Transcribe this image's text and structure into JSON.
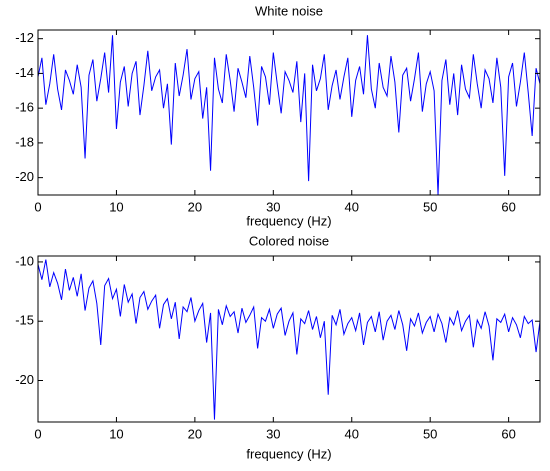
{
  "chart_data": [
    {
      "type": "line",
      "title": "White noise",
      "xlabel": "frequency (Hz)",
      "x": [
        0,
        0.5,
        1,
        1.5,
        2,
        2.5,
        3,
        3.5,
        4,
        4.5,
        5,
        5.5,
        6,
        6.5,
        7,
        7.5,
        8,
        8.5,
        9,
        9.5,
        10,
        10.5,
        11,
        11.5,
        12,
        12.5,
        13,
        13.5,
        14,
        14.5,
        15,
        15.5,
        16,
        16.5,
        17,
        17.5,
        18,
        18.5,
        19,
        19.5,
        20,
        20.5,
        21,
        21.5,
        22,
        22.5,
        23,
        23.5,
        24,
        24.5,
        25,
        25.5,
        26,
        26.5,
        27,
        27.5,
        28,
        28.5,
        29,
        29.5,
        30,
        30.5,
        31,
        31.5,
        32,
        32.5,
        33,
        33.5,
        34,
        34.5,
        35,
        35.5,
        36,
        36.5,
        37,
        37.5,
        38,
        38.5,
        39,
        39.5,
        40,
        40.5,
        41,
        41.5,
        42,
        42.5,
        43,
        43.5,
        44,
        44.5,
        45,
        45.5,
        46,
        46.5,
        47,
        47.5,
        48,
        48.5,
        49,
        49.5,
        50,
        50.5,
        51,
        51.5,
        52,
        52.5,
        53,
        53.5,
        54,
        54.5,
        55,
        55.5,
        56,
        56.5,
        57,
        57.5,
        58,
        58.5,
        59,
        59.5,
        60,
        60.5,
        61,
        61.5,
        62,
        62.5,
        63,
        63.5,
        64
      ],
      "series": [
        {
          "color": "#0000ff",
          "values": [
            -14.2,
            -13.1,
            -15.8,
            -14.6,
            -12.9,
            -14.9,
            -16.1,
            -13.8,
            -14.4,
            -15.2,
            -13.5,
            -14.8,
            -18.9,
            -14.1,
            -13.2,
            -15.6,
            -14.3,
            -12.8,
            -15.1,
            -11.8,
            -17.2,
            -14.5,
            -13.6,
            -15.9,
            -14.0,
            -13.3,
            -16.4,
            -14.7,
            -12.7,
            -15.0,
            -14.2,
            -13.8,
            -16.0,
            -14.6,
            -18.1,
            -13.4,
            -15.3,
            -14.1,
            -12.6,
            -15.5,
            -14.3,
            -13.9,
            -16.6,
            -14.8,
            -19.6,
            -13.1,
            -14.9,
            -15.7,
            -12.9,
            -14.4,
            -16.2,
            -13.7,
            -14.5,
            -15.4,
            -13.0,
            -14.8,
            -17.0,
            -13.6,
            -14.2,
            -15.8,
            -12.8,
            -14.6,
            -16.3,
            -13.9,
            -14.4,
            -15.1,
            -13.3,
            -16.8,
            -14.0,
            -20.2,
            -13.5,
            -15.0,
            -14.3,
            -12.9,
            -16.1,
            -14.7,
            -13.8,
            -15.5,
            -14.2,
            -13.1,
            -16.5,
            -14.4,
            -13.6,
            -15.2,
            -11.8,
            -14.9,
            -16.0,
            -13.4,
            -14.8,
            -15.3,
            -13.0,
            -14.5,
            -17.4,
            -14.1,
            -13.7,
            -15.6,
            -14.3,
            -12.8,
            -16.2,
            -14.6,
            -13.9,
            -15.0,
            -21.0,
            -14.4,
            -13.2,
            -15.8,
            -14.0,
            -16.4,
            -13.5,
            -14.9,
            -15.4,
            -12.9,
            -14.6,
            -16.0,
            -13.8,
            -14.3,
            -15.7,
            -13.1,
            -14.8,
            -19.9,
            -14.2,
            -13.4,
            -15.9,
            -14.5,
            -12.8,
            -15.1,
            -17.6,
            -13.7,
            -14.6
          ]
        }
      ],
      "xlim": [
        0,
        64
      ],
      "xticks": [
        0,
        10,
        20,
        30,
        40,
        50,
        60
      ],
      "ylim": [
        -21,
        -11.5
      ],
      "yticks": [
        -20,
        -18,
        -16,
        -14,
        -12
      ]
    },
    {
      "type": "line",
      "title": "Colored noise",
      "xlabel": "frequency (Hz)",
      "x": [
        0,
        0.5,
        1,
        1.5,
        2,
        2.5,
        3,
        3.5,
        4,
        4.5,
        5,
        5.5,
        6,
        6.5,
        7,
        7.5,
        8,
        8.5,
        9,
        9.5,
        10,
        10.5,
        11,
        11.5,
        12,
        12.5,
        13,
        13.5,
        14,
        14.5,
        15,
        15.5,
        16,
        16.5,
        17,
        17.5,
        18,
        18.5,
        19,
        19.5,
        20,
        20.5,
        21,
        21.5,
        22,
        22.5,
        23,
        23.5,
        24,
        24.5,
        25,
        25.5,
        26,
        26.5,
        27,
        27.5,
        28,
        28.5,
        29,
        29.5,
        30,
        30.5,
        31,
        31.5,
        32,
        32.5,
        33,
        33.5,
        34,
        34.5,
        35,
        35.5,
        36,
        36.5,
        37,
        37.5,
        38,
        38.5,
        39,
        39.5,
        40,
        40.5,
        41,
        41.5,
        42,
        42.5,
        43,
        43.5,
        44,
        44.5,
        45,
        45.5,
        46,
        46.5,
        47,
        47.5,
        48,
        48.5,
        49,
        49.5,
        50,
        50.5,
        51,
        51.5,
        52,
        52.5,
        53,
        53.5,
        54,
        54.5,
        55,
        55.5,
        56,
        56.5,
        57,
        57.5,
        58,
        58.5,
        59,
        59.5,
        60,
        60.5,
        61,
        61.5,
        62,
        62.5,
        63,
        63.5,
        64
      ],
      "series": [
        {
          "color": "#0000ff",
          "values": [
            -10.2,
            -11.5,
            -9.8,
            -12.1,
            -10.9,
            -11.8,
            -13.2,
            -10.6,
            -12.4,
            -11.3,
            -12.9,
            -11.0,
            -14.1,
            -12.2,
            -11.6,
            -13.5,
            -17.0,
            -12.0,
            -11.4,
            -13.1,
            -12.3,
            -14.6,
            -11.9,
            -13.4,
            -12.7,
            -15.2,
            -13.0,
            -12.5,
            -14.0,
            -13.3,
            -12.8,
            -15.6,
            -13.6,
            -13.1,
            -14.8,
            -13.4,
            -16.5,
            -13.8,
            -14.2,
            -13.0,
            -15.0,
            -14.1,
            -13.5,
            -16.8,
            -14.3,
            -23.3,
            -14.0,
            -15.3,
            -13.7,
            -14.6,
            -14.2,
            -16.0,
            -13.9,
            -15.1,
            -14.5,
            -13.8,
            -17.3,
            -14.7,
            -15.0,
            -14.0,
            -15.6,
            -14.4,
            -13.9,
            -16.2,
            -15.0,
            -14.3,
            -17.8,
            -14.8,
            -15.2,
            -14.1,
            -15.7,
            -14.6,
            -16.4,
            -15.0,
            -21.2,
            -14.5,
            -15.3,
            -14.0,
            -16.1,
            -15.2,
            -14.7,
            -15.8,
            -14.3,
            -17.0,
            -15.1,
            -14.6,
            -15.9,
            -14.2,
            -16.6,
            -15.0,
            -14.5,
            -15.7,
            -14.1,
            -15.3,
            -17.5,
            -14.8,
            -15.4,
            -14.3,
            -16.0,
            -15.1,
            -14.6,
            -15.9,
            -14.4,
            -15.2,
            -16.8,
            -14.7,
            -15.3,
            -14.1,
            -15.8,
            -15.0,
            -14.5,
            -17.2,
            -14.9,
            -15.6,
            -14.2,
            -15.4,
            -18.3,
            -14.8,
            -15.1,
            -14.4,
            -15.9,
            -14.7,
            -15.3,
            -16.4,
            -14.6,
            -15.2,
            -14.9,
            -17.6,
            -15.0
          ]
        }
      ],
      "xlim": [
        0,
        64
      ],
      "xticks": [
        0,
        10,
        20,
        30,
        40,
        50,
        60
      ],
      "ylim": [
        -23.5,
        -9.5
      ],
      "yticks": [
        -20,
        -15,
        -10
      ]
    }
  ]
}
